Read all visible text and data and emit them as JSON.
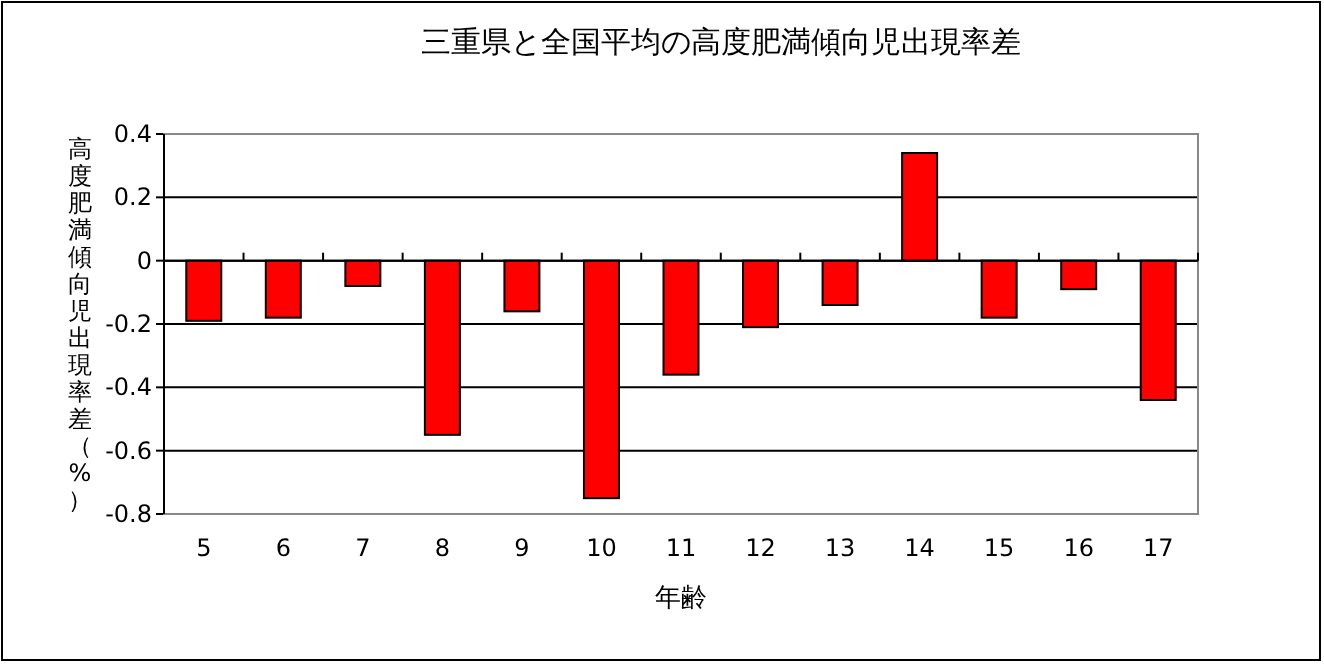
{
  "chart_data": {
    "type": "bar",
    "title": "三重県と全国平均の高度肥満傾向児出現率差",
    "xlabel": "年齢",
    "ylabel": "高度肥満傾向児出現率差（%）",
    "categories": [
      "5",
      "6",
      "7",
      "8",
      "9",
      "10",
      "11",
      "12",
      "13",
      "14",
      "15",
      "16",
      "17"
    ],
    "values": [
      -0.19,
      -0.18,
      -0.08,
      -0.55,
      -0.16,
      -0.75,
      -0.36,
      -0.21,
      -0.14,
      0.34,
      -0.18,
      -0.09,
      -0.44
    ],
    "color": "#ff0000",
    "ylim": [
      -0.8,
      0.4
    ],
    "yticks": [
      -0.8,
      -0.6,
      -0.4,
      -0.2,
      0,
      0.2,
      0.4
    ],
    "grid": "y"
  }
}
